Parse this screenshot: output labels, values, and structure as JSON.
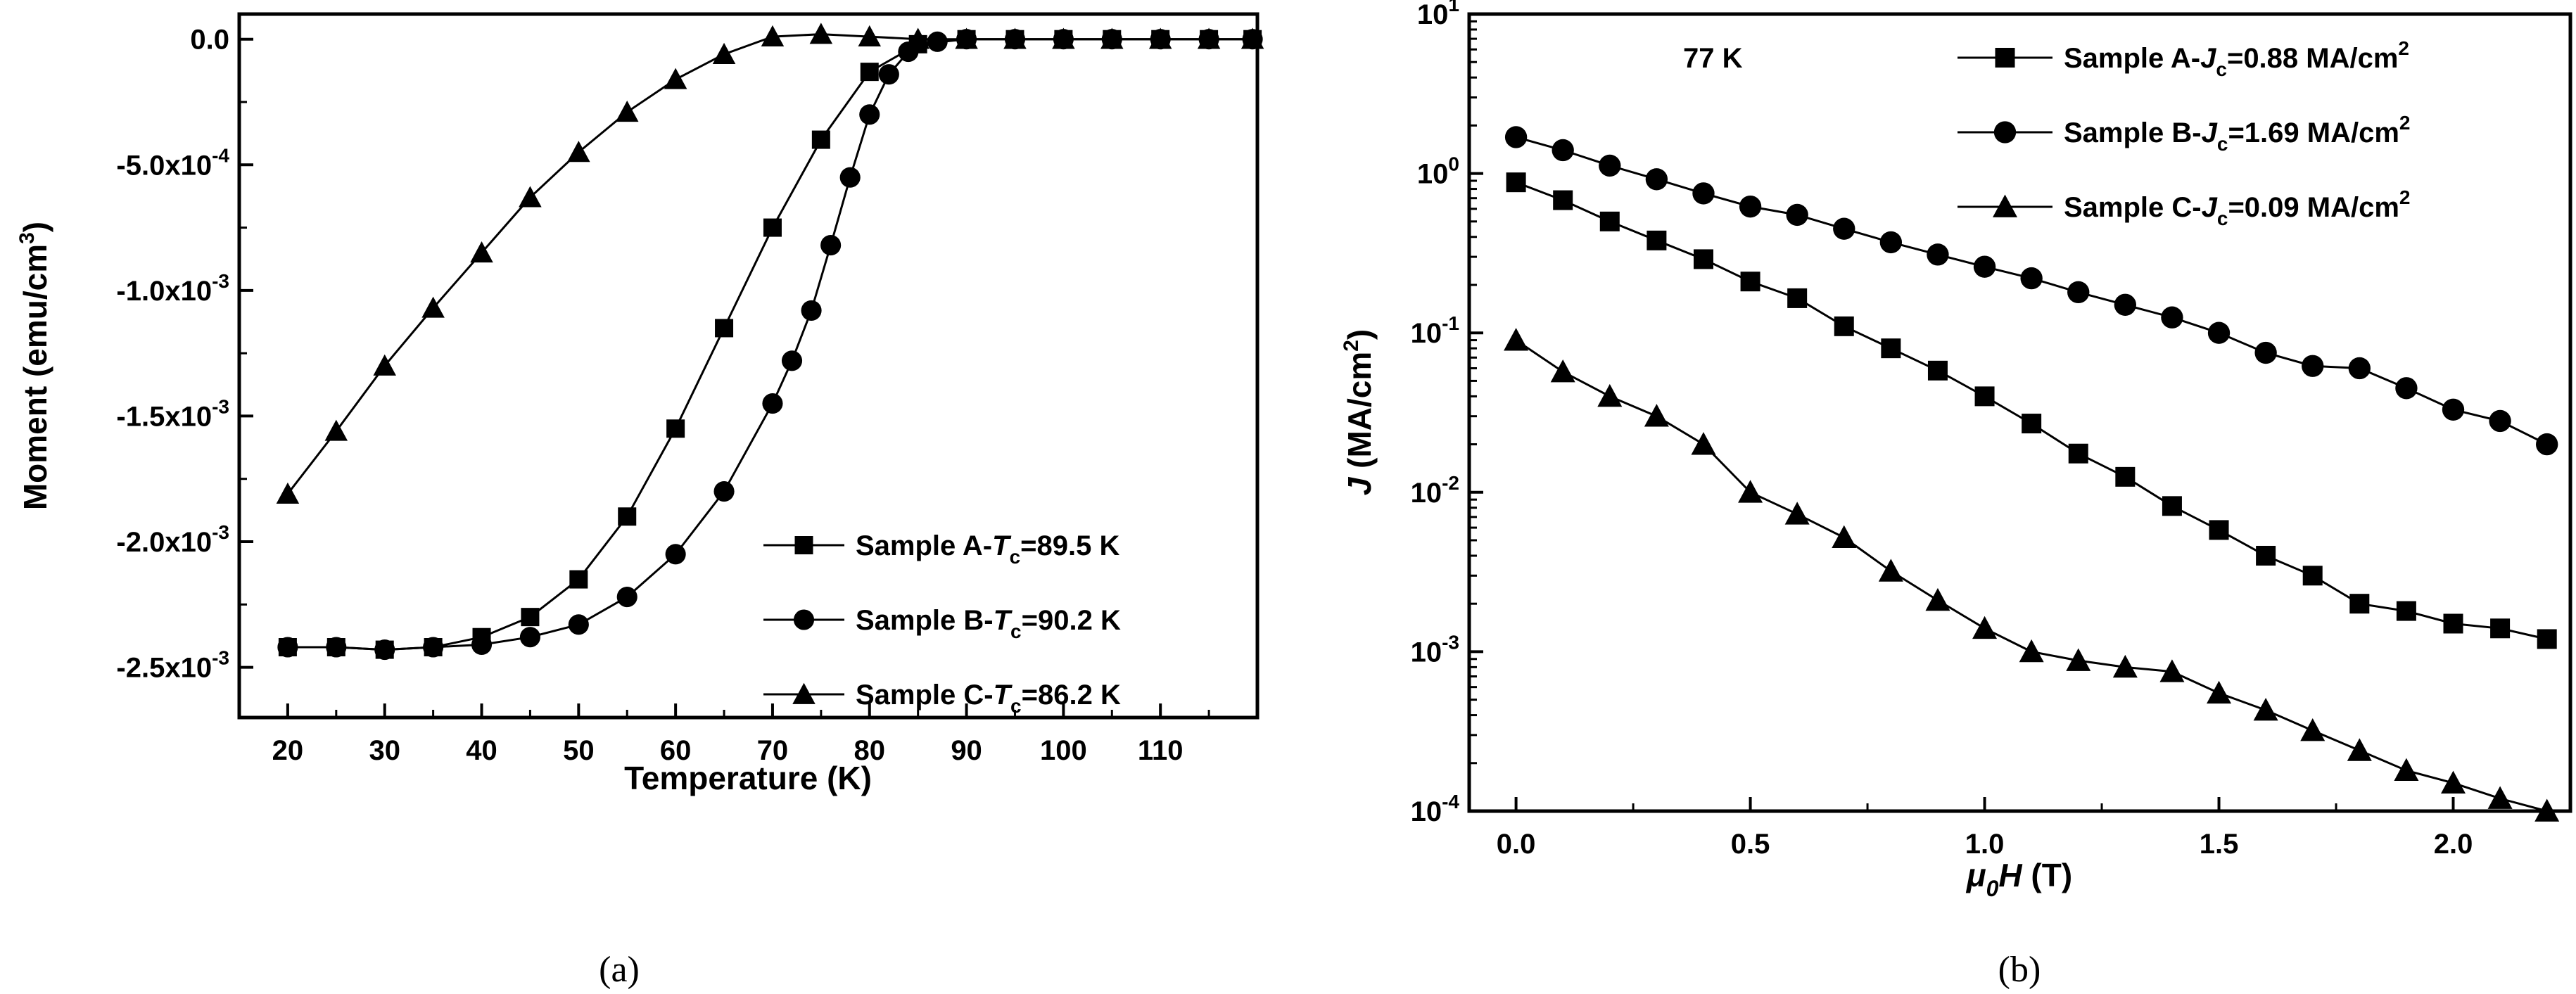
{
  "chart_data": [
    {
      "type": "line",
      "panel_label": "(a)",
      "xlabel": "Temperature (K)",
      "ylabel": {
        "main": "Moment (emu/cm",
        "sup": "3",
        "tail": ")"
      },
      "xlim": [
        15,
        120
      ],
      "ylim": [
        -0.0027,
        0.0001
      ],
      "x_ticks": [
        {
          "v": 20,
          "label": "20"
        },
        {
          "v": 30,
          "label": "30"
        },
        {
          "v": 40,
          "label": "40"
        },
        {
          "v": 50,
          "label": "50"
        },
        {
          "v": 60,
          "label": "60"
        },
        {
          "v": 70,
          "label": "70"
        },
        {
          "v": 80,
          "label": "80"
        },
        {
          "v": 90,
          "label": "90"
        },
        {
          "v": 100,
          "label": "100"
        },
        {
          "v": 110,
          "label": "110"
        }
      ],
      "y_ticks": [
        {
          "v": 0,
          "label": "0.0",
          "exp": ""
        },
        {
          "v": -0.0005,
          "label": "-5.0x10",
          "exp": "-4"
        },
        {
          "v": -0.001,
          "label": "-1.0x10",
          "exp": "-3"
        },
        {
          "v": -0.0015,
          "label": "-1.5x10",
          "exp": "-3"
        },
        {
          "v": -0.002,
          "label": "-2.0x10",
          "exp": "-3"
        },
        {
          "v": -0.0025,
          "label": "-2.5x10",
          "exp": "-3"
        }
      ],
      "grid": false,
      "legend_position": "lower-right",
      "series": [
        {
          "name": "Sample A",
          "legend": {
            "prefix": "Sample A-",
            "var": "T",
            "sub": "c",
            "value": "=89.5 K"
          },
          "marker": "square",
          "points": [
            [
              20,
              -0.00242
            ],
            [
              25,
              -0.00242
            ],
            [
              30,
              -0.00243
            ],
            [
              35,
              -0.00242
            ],
            [
              40,
              -0.00238
            ],
            [
              45,
              -0.0023
            ],
            [
              50,
              -0.00215
            ],
            [
              55,
              -0.0019
            ],
            [
              60,
              -0.00155
            ],
            [
              65,
              -0.00115
            ],
            [
              70,
              -0.00075
            ],
            [
              75,
              -0.0004
            ],
            [
              80,
              -0.00013
            ],
            [
              85,
              -2e-05
            ],
            [
              90,
              0
            ],
            [
              95,
              0
            ],
            [
              100,
              0
            ],
            [
              105,
              0
            ],
            [
              110,
              0
            ],
            [
              115,
              0
            ],
            [
              119.5,
              0
            ]
          ]
        },
        {
          "name": "Sample B",
          "legend": {
            "prefix": "Sample B-",
            "var": "T",
            "sub": "c",
            "value": "=90.2 K"
          },
          "marker": "circle",
          "points": [
            [
              20,
              -0.00242
            ],
            [
              25,
              -0.00242
            ],
            [
              30,
              -0.00243
            ],
            [
              35,
              -0.00242
            ],
            [
              40,
              -0.00241
            ],
            [
              45,
              -0.00238
            ],
            [
              50,
              -0.00233
            ],
            [
              55,
              -0.00222
            ],
            [
              60,
              -0.00205
            ],
            [
              65,
              -0.0018
            ],
            [
              70,
              -0.00145
            ],
            [
              72,
              -0.00128
            ],
            [
              74,
              -0.00108
            ],
            [
              76,
              -0.00082
            ],
            [
              78,
              -0.00055
            ],
            [
              80,
              -0.0003
            ],
            [
              82,
              -0.00014
            ],
            [
              84,
              -5e-05
            ],
            [
              87,
              -1e-05
            ],
            [
              90,
              0
            ],
            [
              95,
              0
            ],
            [
              100,
              0
            ],
            [
              105,
              0
            ],
            [
              110,
              0
            ],
            [
              115,
              0
            ],
            [
              119.5,
              0
            ]
          ]
        },
        {
          "name": "Sample C",
          "legend": {
            "prefix": "Sample C-",
            "var": "T",
            "sub": "c",
            "value": "=86.2 K"
          },
          "marker": "triangle",
          "points": [
            [
              20,
              -0.00181
            ],
            [
              25,
              -0.00156
            ],
            [
              30,
              -0.0013
            ],
            [
              35,
              -0.00107
            ],
            [
              40,
              -0.00085
            ],
            [
              45,
              -0.00063
            ],
            [
              50,
              -0.00045
            ],
            [
              55,
              -0.00029
            ],
            [
              60,
              -0.00016
            ],
            [
              65,
              -6e-05
            ],
            [
              70,
              1e-05
            ],
            [
              75,
              2e-05
            ],
            [
              80,
              1e-05
            ],
            [
              85,
              0
            ],
            [
              90,
              0
            ],
            [
              95,
              0
            ],
            [
              100,
              0
            ],
            [
              105,
              0
            ],
            [
              110,
              0
            ],
            [
              115,
              0
            ],
            [
              119.5,
              0
            ]
          ]
        }
      ]
    },
    {
      "type": "line",
      "panel_label": "(b)",
      "title": "77 K",
      "xlabel": {
        "mu": "μ",
        "sub": "0",
        "var": "H",
        "unit": " (T)"
      },
      "ylabel": {
        "var": "J",
        "unit": " (MA/cm",
        "sup": "2",
        "tail": ")"
      },
      "yscale": "log",
      "xlim": [
        -0.1,
        2.25
      ],
      "ylim": [
        0.0001,
        10
      ],
      "x_ticks": [
        {
          "v": 0,
          "label": "0.0"
        },
        {
          "v": 0.5,
          "label": "0.5"
        },
        {
          "v": 1.0,
          "label": "1.0"
        },
        {
          "v": 1.5,
          "label": "1.5"
        },
        {
          "v": 2.0,
          "label": "2.0"
        }
      ],
      "y_ticks": [
        {
          "v": 10,
          "label": "10",
          "exp": "1"
        },
        {
          "v": 1,
          "label": "10",
          "exp": "0"
        },
        {
          "v": 0.1,
          "label": "10",
          "exp": "-1"
        },
        {
          "v": 0.01,
          "label": "10",
          "exp": "-2"
        },
        {
          "v": 0.001,
          "label": "10",
          "exp": "-3"
        },
        {
          "v": 0.0001,
          "label": "10",
          "exp": "-4"
        }
      ],
      "grid": false,
      "legend_position": "top-right",
      "series": [
        {
          "name": "Sample A",
          "legend": {
            "prefix": "Sample A-",
            "var": "J",
            "sub": "c",
            "value": "=0.88 MA/cm",
            "sup": "2"
          },
          "marker": "square",
          "points": [
            [
              0,
              0.88
            ],
            [
              0.1,
              0.68
            ],
            [
              0.2,
              0.5
            ],
            [
              0.3,
              0.38
            ],
            [
              0.4,
              0.29
            ],
            [
              0.5,
              0.21
            ],
            [
              0.6,
              0.165
            ],
            [
              0.7,
              0.11
            ],
            [
              0.8,
              0.08
            ],
            [
              0.9,
              0.058
            ],
            [
              1.0,
              0.04
            ],
            [
              1.1,
              0.027
            ],
            [
              1.2,
              0.0175
            ],
            [
              1.3,
              0.0125
            ],
            [
              1.4,
              0.0082
            ],
            [
              1.5,
              0.0058
            ],
            [
              1.6,
              0.004
            ],
            [
              1.7,
              0.003
            ],
            [
              1.8,
              0.002
            ],
            [
              1.9,
              0.0018
            ],
            [
              2.0,
              0.0015
            ],
            [
              2.1,
              0.0014
            ],
            [
              2.2,
              0.0012
            ]
          ]
        },
        {
          "name": "Sample B",
          "legend": {
            "prefix": "Sample B-",
            "var": "J",
            "sub": "c",
            "value": "=1.69 MA/cm",
            "sup": "2"
          },
          "marker": "circle",
          "points": [
            [
              0,
              1.69
            ],
            [
              0.1,
              1.4
            ],
            [
              0.2,
              1.12
            ],
            [
              0.3,
              0.92
            ],
            [
              0.4,
              0.75
            ],
            [
              0.5,
              0.62
            ],
            [
              0.6,
              0.55
            ],
            [
              0.7,
              0.45
            ],
            [
              0.8,
              0.37
            ],
            [
              0.9,
              0.31
            ],
            [
              1.0,
              0.26
            ],
            [
              1.1,
              0.22
            ],
            [
              1.2,
              0.18
            ],
            [
              1.3,
              0.15
            ],
            [
              1.4,
              0.125
            ],
            [
              1.5,
              0.1
            ],
            [
              1.6,
              0.075
            ],
            [
              1.7,
              0.062
            ],
            [
              1.8,
              0.06
            ],
            [
              1.9,
              0.045
            ],
            [
              2.0,
              0.033
            ],
            [
              2.1,
              0.028
            ],
            [
              2.2,
              0.02
            ]
          ]
        },
        {
          "name": "Sample C",
          "legend": {
            "prefix": "Sample C-",
            "var": "J",
            "sub": "c",
            "value": "=0.09 MA/cm",
            "sup": "2"
          },
          "marker": "triangle",
          "points": [
            [
              0,
              0.09
            ],
            [
              0.1,
              0.057
            ],
            [
              0.2,
              0.04
            ],
            [
              0.3,
              0.03
            ],
            [
              0.4,
              0.02
            ],
            [
              0.5,
              0.01
            ],
            [
              0.6,
              0.0073
            ],
            [
              0.7,
              0.0052
            ],
            [
              0.8,
              0.0032
            ],
            [
              0.9,
              0.0021
            ],
            [
              1.0,
              0.0014
            ],
            [
              1.1,
              0.001
            ],
            [
              1.2,
              0.00088
            ],
            [
              1.3,
              0.0008
            ],
            [
              1.4,
              0.00075
            ],
            [
              1.5,
              0.00055
            ],
            [
              1.6,
              0.00043
            ],
            [
              1.7,
              0.00032
            ],
            [
              1.8,
              0.00024
            ],
            [
              1.9,
              0.00018
            ],
            [
              2.0,
              0.00015
            ],
            [
              2.1,
              0.00012
            ],
            [
              2.2,
              0.0001
            ]
          ]
        }
      ]
    }
  ]
}
